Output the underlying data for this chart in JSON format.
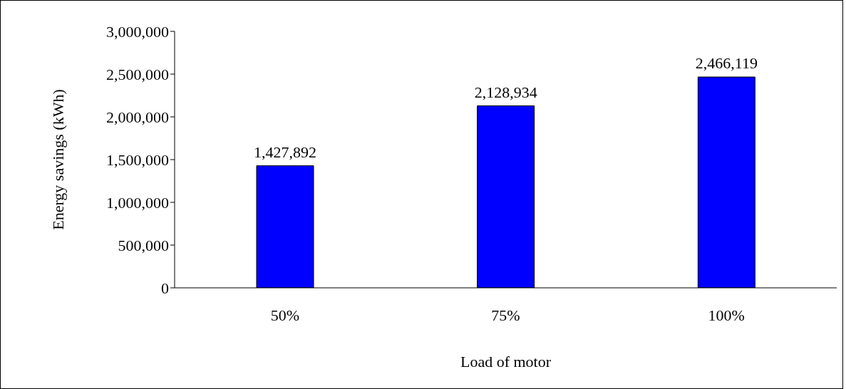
{
  "chart_data": {
    "type": "bar",
    "xlabel": "Load of motor",
    "ylabel": "Energy savings (kWh)",
    "categories": [
      "50%",
      "75%",
      "100%"
    ],
    "values": [
      1427892,
      2128934,
      2466119
    ],
    "color": "#0000ff",
    "value_labels": [
      "1,427,892",
      "2,128,934",
      "2,466,119"
    ],
    "ylim": [
      0,
      3000000
    ],
    "yticks": [
      0,
      {
        "value": 500000,
        "label": "500,000"
      },
      {
        "value": 1000000,
        "label": "1,000,000"
      },
      {
        "value": 1500000,
        "label": "1,500,000"
      },
      {
        "value": 2000000,
        "label": "2,000,000"
      },
      {
        "value": 2500000,
        "label": "2,500,000"
      },
      {
        "value": 3000000,
        "label": "3,000,000"
      }
    ],
    "grid": false,
    "legend": false
  }
}
